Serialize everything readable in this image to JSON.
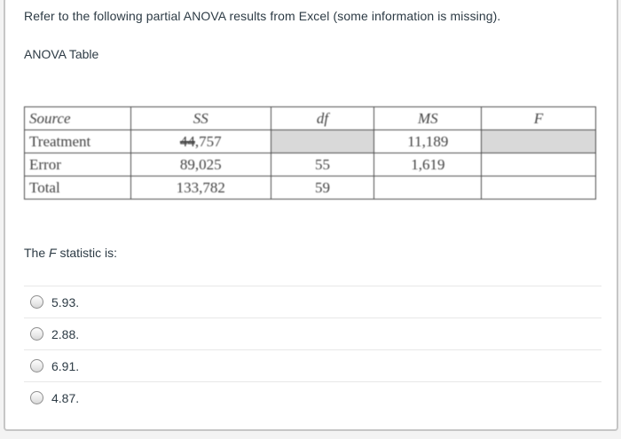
{
  "question": {
    "prompt": "Refer to the following partial ANOVA results from Excel (some information is missing).",
    "table_label": "ANOVA Table",
    "fstat_before": "The ",
    "fstat_italic": "F",
    "fstat_after": " statistic is:"
  },
  "anova": {
    "headers": [
      "Source",
      "SS",
      "df",
      "MS",
      "F"
    ],
    "rows": [
      {
        "source": "Treatment",
        "ss_struck": "44",
        "ss_rest": ",757",
        "df": "",
        "ms": "11,189",
        "f": ""
      },
      {
        "source": "Error",
        "ss": "89,025",
        "df": "55",
        "ms": "1,619",
        "f": ""
      },
      {
        "source": "Total",
        "ss": "133,782",
        "df": "59",
        "ms": "",
        "f": ""
      }
    ],
    "missing_cell_color": "#d9d9d9"
  },
  "options": [
    {
      "label": "5.93."
    },
    {
      "label": "2.88."
    },
    {
      "label": "6.91."
    },
    {
      "label": "4.87."
    }
  ],
  "colors": {
    "text": "#2d3b45",
    "card_border": "#c6c6c6",
    "divider": "#e8e8e8",
    "table_border": "#4d4d4d"
  }
}
